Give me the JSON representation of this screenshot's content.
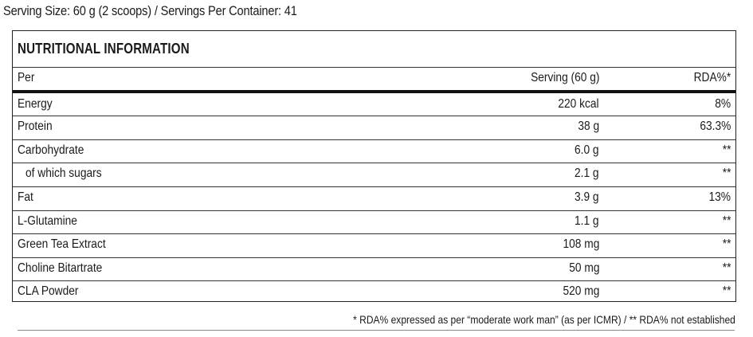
{
  "serving_info": "Serving Size: 60 g (2 scoops)  / Servings Per Container: 41",
  "panel": {
    "title": "NUTRITIONAL INFORMATION",
    "header": {
      "col_name": "Per",
      "col_serving": "Serving (60 g)",
      "col_rda": "RDA%*"
    },
    "rows": [
      {
        "name": "Energy",
        "serving": "220 kcal",
        "rda": "8%",
        "indent": false
      },
      {
        "name": "Protein",
        "serving": "38 g",
        "rda": "63.3%",
        "indent": false
      },
      {
        "name": "Carbohydrate",
        "serving": "6.0 g",
        "rda": "**",
        "indent": false
      },
      {
        "name": "of which sugars",
        "serving": "2.1 g",
        "rda": "**",
        "indent": true
      },
      {
        "name": "Fat",
        "serving": "3.9 g",
        "rda": "13%",
        "indent": false
      },
      {
        "name": "L-Glutamine",
        "serving": "1.1 g",
        "rda": "**",
        "indent": false
      },
      {
        "name": "Green Tea Extract",
        "serving": "108 mg",
        "rda": "**",
        "indent": false
      },
      {
        "name": "Choline Bitartrate",
        "serving": "50 mg",
        "rda": "**",
        "indent": false
      },
      {
        "name": "CLA Powder",
        "serving": "520 mg",
        "rda": "**",
        "indent": false
      }
    ]
  },
  "footnote": "* RDA% expressed as per “moderate work man” (as per ICMR) / ** RDA% not established"
}
